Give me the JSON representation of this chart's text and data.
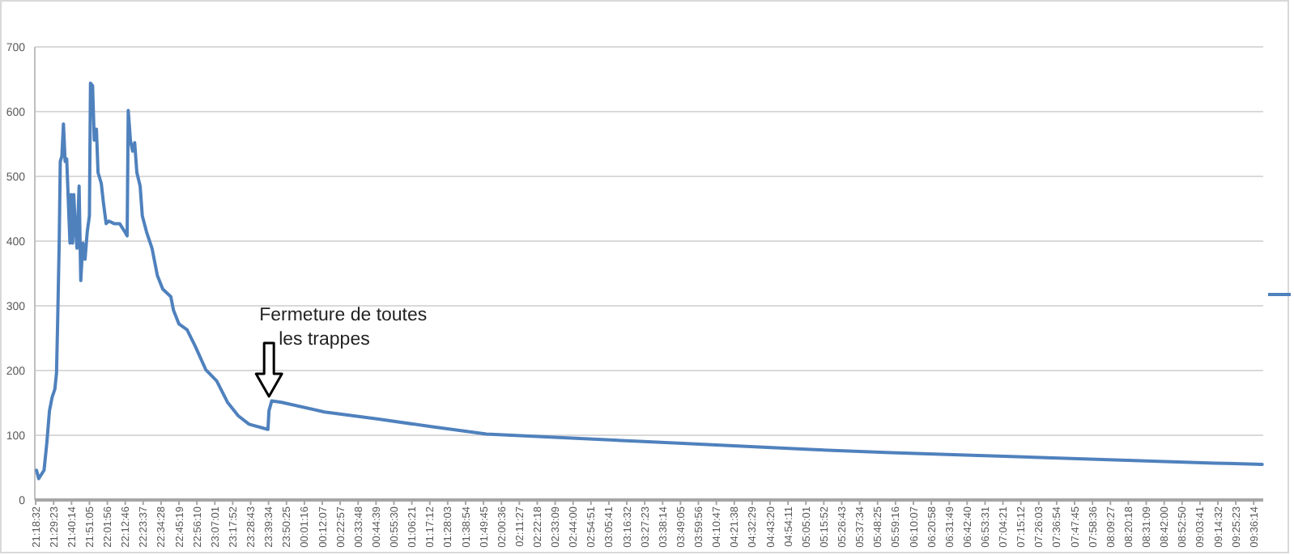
{
  "chart_data": {
    "type": "line",
    "ylim": [
      0,
      700
    ],
    "yticks": [
      0,
      100,
      200,
      300,
      400,
      500,
      600,
      700
    ],
    "xlim": [
      "2000-01-01T21:18:00",
      "2000-01-02T09:42:00"
    ],
    "xticks": [
      {
        "value": "2000-01-01T21:18:32",
        "label": "21:18:32"
      },
      {
        "value": "2000-01-01T21:29:23",
        "label": "21:29:23"
      },
      {
        "value": "2000-01-01T21:40:14",
        "label": "21:40:14"
      },
      {
        "value": "2000-01-01T21:51:05",
        "label": "21:51:05"
      },
      {
        "value": "2000-01-01T22:01:56",
        "label": "22:01:56"
      },
      {
        "value": "2000-01-01T22:12:46",
        "label": "22:12:46"
      },
      {
        "value": "2000-01-01T22:23:37",
        "label": "22:23:37"
      },
      {
        "value": "2000-01-01T22:34:28",
        "label": "22:34:28"
      },
      {
        "value": "2000-01-01T22:45:19",
        "label": "22:45:19"
      },
      {
        "value": "2000-01-01T22:56:10",
        "label": "22:56:10"
      },
      {
        "value": "2000-01-01T23:07:01",
        "label": "23:07:01"
      },
      {
        "value": "2000-01-01T23:17:52",
        "label": "23:17:52"
      },
      {
        "value": "2000-01-01T23:28:43",
        "label": "23:28:43"
      },
      {
        "value": "2000-01-01T23:39:34",
        "label": "23:39:34"
      },
      {
        "value": "2000-01-01T23:50:25",
        "label": "23:50:25"
      },
      {
        "value": "2000-01-02T00:01:16",
        "label": "00:01:16"
      },
      {
        "value": "2000-01-02T00:12:07",
        "label": "00:12:07"
      },
      {
        "value": "2000-01-02T00:22:57",
        "label": "00:22:57"
      },
      {
        "value": "2000-01-02T00:33:48",
        "label": "00:33:48"
      },
      {
        "value": "2000-01-02T00:44:39",
        "label": "00:44:39"
      },
      {
        "value": "2000-01-02T00:55:30",
        "label": "00:55:30"
      },
      {
        "value": "2000-01-02T01:06:21",
        "label": "01:06:21"
      },
      {
        "value": "2000-01-02T01:17:12",
        "label": "01:17:12"
      },
      {
        "value": "2000-01-02T01:28:03",
        "label": "01:28:03"
      },
      {
        "value": "2000-01-02T01:38:54",
        "label": "01:38:54"
      },
      {
        "value": "2000-01-02T01:49:45",
        "label": "01:49:45"
      },
      {
        "value": "2000-01-02T02:00:36",
        "label": "02:00:36"
      },
      {
        "value": "2000-01-02T02:11:27",
        "label": "02:11:27"
      },
      {
        "value": "2000-01-02T02:22:18",
        "label": "02:22:18"
      },
      {
        "value": "2000-01-02T02:33:09",
        "label": "02:33:09"
      },
      {
        "value": "2000-01-02T02:44:00",
        "label": "02:44:00"
      },
      {
        "value": "2000-01-02T02:54:51",
        "label": "02:54:51"
      },
      {
        "value": "2000-01-02T03:05:41",
        "label": "03:05:41"
      },
      {
        "value": "2000-01-02T03:16:32",
        "label": "03:16:32"
      },
      {
        "value": "2000-01-02T03:27:23",
        "label": "03:27:23"
      },
      {
        "value": "2000-01-02T03:38:14",
        "label": "03:38:14"
      },
      {
        "value": "2000-01-02T03:49:05",
        "label": "03:49:05"
      },
      {
        "value": "2000-01-02T03:59:56",
        "label": "03:59:56"
      },
      {
        "value": "2000-01-02T04:10:47",
        "label": "04:10:47"
      },
      {
        "value": "2000-01-02T04:21:38",
        "label": "04:21:38"
      },
      {
        "value": "2000-01-02T04:32:29",
        "label": "04:32:29"
      },
      {
        "value": "2000-01-02T04:43:20",
        "label": "04:43:20"
      },
      {
        "value": "2000-01-02T04:54:11",
        "label": "04:54:11"
      },
      {
        "value": "2000-01-02T05:05:01",
        "label": "05:05:01"
      },
      {
        "value": "2000-01-02T05:15:52",
        "label": "05:15:52"
      },
      {
        "value": "2000-01-02T05:26:43",
        "label": "05:26:43"
      },
      {
        "value": "2000-01-02T05:37:34",
        "label": "05:37:34"
      },
      {
        "value": "2000-01-02T05:48:25",
        "label": "05:48:25"
      },
      {
        "value": "2000-01-02T05:59:16",
        "label": "05:59:16"
      },
      {
        "value": "2000-01-02T06:10:07",
        "label": "06:10:07"
      },
      {
        "value": "2000-01-02T06:20:58",
        "label": "06:20:58"
      },
      {
        "value": "2000-01-02T06:31:49",
        "label": "06:31:49"
      },
      {
        "value": "2000-01-02T06:42:40",
        "label": "06:42:40"
      },
      {
        "value": "2000-01-02T06:53:31",
        "label": "06:53:31"
      },
      {
        "value": "2000-01-02T07:04:21",
        "label": "07:04:21"
      },
      {
        "value": "2000-01-02T07:15:12",
        "label": "07:15:12"
      },
      {
        "value": "2000-01-02T07:26:03",
        "label": "07:26:03"
      },
      {
        "value": "2000-01-02T07:36:54",
        "label": "07:36:54"
      },
      {
        "value": "2000-01-02T07:47:45",
        "label": "07:47:45"
      },
      {
        "value": "2000-01-02T07:58:36",
        "label": "07:58:36"
      },
      {
        "value": "2000-01-02T08:09:27",
        "label": "08:09:27"
      },
      {
        "value": "2000-01-02T08:20:18",
        "label": "08:20:18"
      },
      {
        "value": "2000-01-02T08:31:09",
        "label": "08:31:09"
      },
      {
        "value": "2000-01-02T08:42:00",
        "label": "08:42:00"
      },
      {
        "value": "2000-01-02T08:52:50",
        "label": "08:52:50"
      },
      {
        "value": "2000-01-02T09:03:41",
        "label": "09:03:41"
      },
      {
        "value": "2000-01-02T09:14:32",
        "label": "09:14:32"
      },
      {
        "value": "2000-01-02T09:25:23",
        "label": "09:25:23"
      },
      {
        "value": "2000-01-02T09:36:14",
        "label": "09:36:14"
      }
    ],
    "grid": "y",
    "marker": "none",
    "line_style": "solid",
    "annotations": [
      {
        "text": "Fermeture de toutes les trappes",
        "x": "2000-01-01T23:39:50",
        "y": 160
      }
    ],
    "series": [
      {
        "color": "#4f81bd",
        "x": [
          "2000-01-01T21:19:01",
          "2000-01-01T21:20:20",
          "2000-01-01T21:23:35",
          "2000-01-01T21:25:16",
          "2000-01-01T21:26:53",
          "2000-01-01T21:28:30",
          "2000-01-01T21:30:07",
          "2000-01-01T21:31:08",
          "2000-01-01T21:31:48",
          "2000-01-01T21:32:46",
          "2000-01-01T21:33:25",
          "2000-01-01T21:34:23",
          "2000-01-01T21:35:20",
          "2000-01-01T21:36:22",
          "2000-01-01T21:37:19",
          "2000-01-01T21:38:38",
          "2000-01-01T21:39:18",
          "2000-01-01T21:39:58",
          "2000-01-01T21:40:55",
          "2000-01-01T21:41:35",
          "2000-01-01T21:42:32",
          "2000-01-01T21:43:34",
          "2000-01-01T21:44:49",
          "2000-01-01T21:45:50",
          "2000-01-01T21:47:06",
          "2000-01-01T21:48:25",
          "2000-01-01T21:49:44",
          "2000-01-01T21:51:04",
          "2000-01-01T21:51:43",
          "2000-01-01T21:52:59",
          "2000-01-01T21:54:00",
          "2000-01-01T21:55:19",
          "2000-01-01T21:56:17",
          "2000-01-01T21:58:16",
          "2000-01-01T21:59:31",
          "2000-01-01T22:01:12",
          "2000-01-01T22:02:49",
          "2000-01-01T22:06:04",
          "2000-01-01T22:09:22",
          "2000-01-01T22:12:36",
          "2000-01-01T22:13:55",
          "2000-01-01T22:14:35",
          "2000-01-01T22:15:54",
          "2000-01-01T22:17:13",
          "2000-01-01T22:18:29",
          "2000-01-01T22:19:48",
          "2000-01-01T22:21:47",
          "2000-01-01T22:23:06",
          "2000-01-01T22:25:41",
          "2000-01-01T22:28:59",
          "2000-01-01T22:32:13",
          "2000-01-01T22:35:28",
          "2000-01-01T22:40:23",
          "2000-01-01T22:42:00",
          "2000-01-01T22:45:18",
          "2000-01-01T22:50:13",
          "2000-01-01T22:55:05",
          "2000-01-01T23:01:37",
          "2000-01-01T23:08:10",
          "2000-01-01T23:14:42",
          "2000-01-01T23:21:14",
          "2000-01-01T23:27:47",
          "2000-01-01T23:39:11",
          "2000-01-01T23:39:50",
          "2000-01-01T23:41:28",
          "2000-01-01T23:47:20",
          "2000-01-02T00:13:30",
          "2000-01-02T00:46:08",
          "2000-01-02T01:18:50",
          "2000-01-02T01:51:32",
          "2000-01-02T02:40:34",
          "2000-01-02T03:29:35",
          "2000-01-02T04:18:36",
          "2000-01-02T05:07:37",
          "2000-01-02T05:56:38",
          "2000-01-02T06:45:40",
          "2000-01-02T07:34:41",
          "2000-01-02T08:23:42",
          "2000-01-02T09:12:43",
          "2000-01-02T09:41:24"
        ],
        "values": [
          46,
          33,
          46,
          88,
          138,
          159,
          171,
          196,
          272,
          397,
          523,
          531,
          581,
          523,
          527,
          439,
          397,
          472,
          397,
          472,
          422,
          389,
          485,
          339,
          397,
          372,
          414,
          439,
          644,
          640,
          556,
          573,
          506,
          489,
          460,
          427,
          431,
          427,
          427,
          414,
          408,
          602,
          556,
          539,
          552,
          506,
          485,
          439,
          414,
          389,
          347,
          326,
          314,
          293,
          272,
          263,
          238,
          201,
          184,
          151,
          130,
          117,
          109,
          138,
          153,
          151,
          136,
          125,
          113,
          102,
          96,
          90,
          84,
          78,
          73,
          69,
          65,
          61,
          57,
          55
        ]
      }
    ]
  }
}
